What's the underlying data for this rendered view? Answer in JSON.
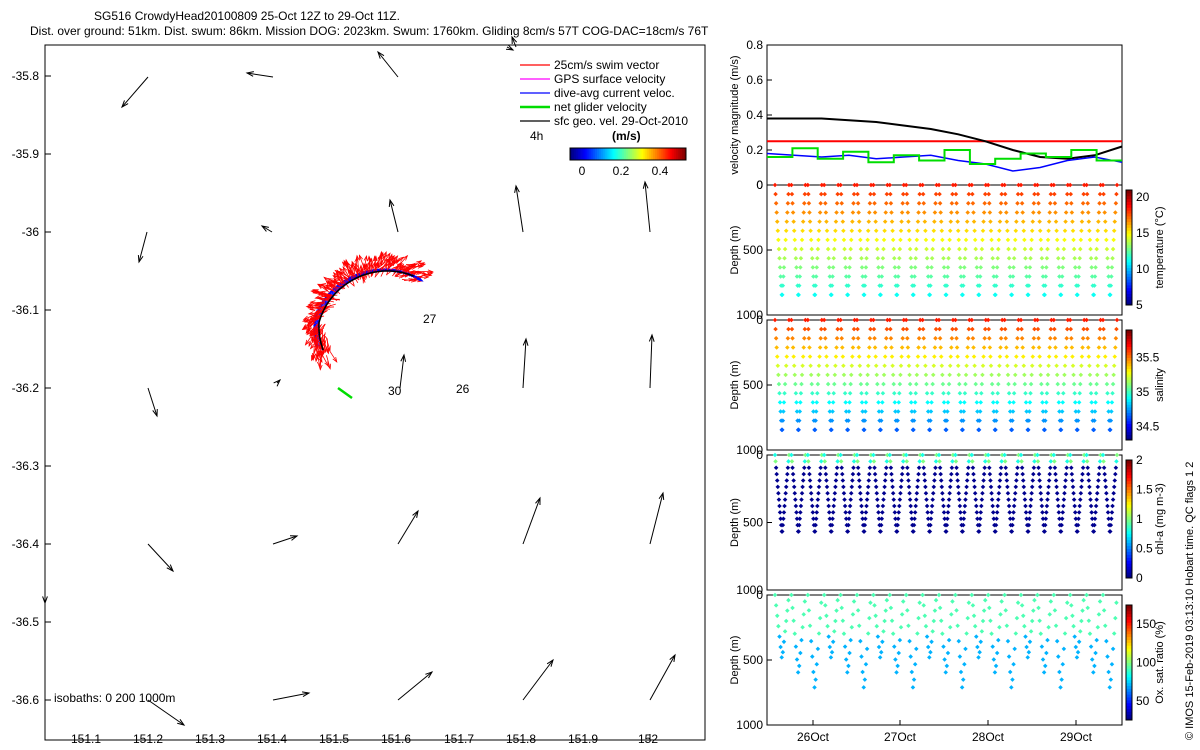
{
  "header": {
    "line1": "SG516 CrowdyHead20100809 25-Oct 12Z to 29-Oct 11Z.",
    "line2": "Dist. over ground: 51km. Dist. swum: 86km. Mission DOG: 2023km. Swum: 1760km. Gliding 8cm/s 57T COG-DAC=18cm/s 76T"
  },
  "map": {
    "xticks": [
      "151.1",
      "151.2",
      "151.3",
      "151.4",
      "151.5",
      "151.6",
      "151.7",
      "151.8",
      "151.9",
      "152"
    ],
    "yticks": [
      "-35.8",
      "-35.9",
      "-36",
      "-36.1",
      "-36.2",
      "-36.3",
      "-36.4",
      "-36.5",
      "-36.6"
    ],
    "legend": [
      {
        "label": "25cm/s swim vector",
        "color": "#ff0000"
      },
      {
        "label": "GPS surface velocity",
        "color": "#ff00ff"
      },
      {
        "label": "dive-avg current veloc.",
        "color": "#0000ff"
      },
      {
        "label": "net glider velocity",
        "color": "#00dd00"
      },
      {
        "label": "sfc geo. vel. 29-Oct-2010",
        "color": "#000000"
      }
    ],
    "hours_label": "4h",
    "colorbar_title": "(m/s)",
    "colorbar_ticks": [
      "0",
      "0.2",
      "0.4"
    ],
    "day_labels": [
      "27",
      "26",
      "30"
    ],
    "isobaths": "isobaths: 0   200  1000m"
  },
  "chart_data": [
    {
      "type": "line",
      "ylabel": "velocity magnitude (m/s)",
      "ylim": [
        0,
        0.8
      ],
      "yticks": [
        "0",
        "0.2",
        "0.4",
        "0.6",
        "0.8"
      ],
      "series": [
        {
          "color": "#ff0000",
          "value": 0.25
        },
        {
          "color": "#000000",
          "values": [
            0.38,
            0.38,
            0.38,
            0.37,
            0.36,
            0.34,
            0.32,
            0.29,
            0.25,
            0.2,
            0.16,
            0.15,
            0.17,
            0.22
          ]
        },
        {
          "color": "#0000ff",
          "values": [
            0.18,
            0.17,
            0.16,
            0.17,
            0.15,
            0.16,
            0.17,
            0.14,
            0.12,
            0.08,
            0.1,
            0.14,
            0.16,
            0.13
          ]
        },
        {
          "color": "#00dd00",
          "values": [
            0.16,
            0.21,
            0.15,
            0.19,
            0.13,
            0.17,
            0.14,
            0.2,
            0.12,
            0.15,
            0.18,
            0.16,
            0.2,
            0.14
          ]
        }
      ]
    },
    {
      "type": "scatter",
      "ylabel": "Depth (m)",
      "clabel": "temperature (°C)",
      "yticks": [
        "0",
        "500",
        "1000"
      ],
      "cticks": [
        "5",
        "10",
        "15",
        "20"
      ],
      "depth_top_band": [
        0,
        350
      ],
      "values": "temperature decreases with depth, ~19 °C near surface to ~7 °C at 880 m"
    },
    {
      "type": "scatter",
      "ylabel": "Depth (m)",
      "clabel": "salinity",
      "yticks": [
        "0",
        "500",
        "1000"
      ],
      "cticks": [
        "34.5",
        "35",
        "35.5"
      ],
      "values": "salinity ~35.5 near surface decreasing to ~34.5 at depth"
    },
    {
      "type": "scatter",
      "ylabel": "Depth (m)",
      "clabel": "chl-a (mg m-3)",
      "yticks": [
        "0",
        "500",
        "1000"
      ],
      "cticks": [
        "0",
        "0.5",
        "1",
        "1.5",
        "2"
      ],
      "values": "chl-a near 0 everywhere except small patches near surface"
    },
    {
      "type": "scatter",
      "ylabel": "Depth (m)",
      "clabel": "Ox. sat. ratio (%)",
      "yticks": [
        "0",
        "500",
        "1000"
      ],
      "cticks": [
        "50",
        "100",
        "150"
      ],
      "xticks": [
        "26Oct",
        "27Oct",
        "28Oct",
        "29Oct"
      ]
    }
  ],
  "side_text": "© IMOS 15-Feb-2019 03:13:10 Hobart time. QC flags 1  2"
}
